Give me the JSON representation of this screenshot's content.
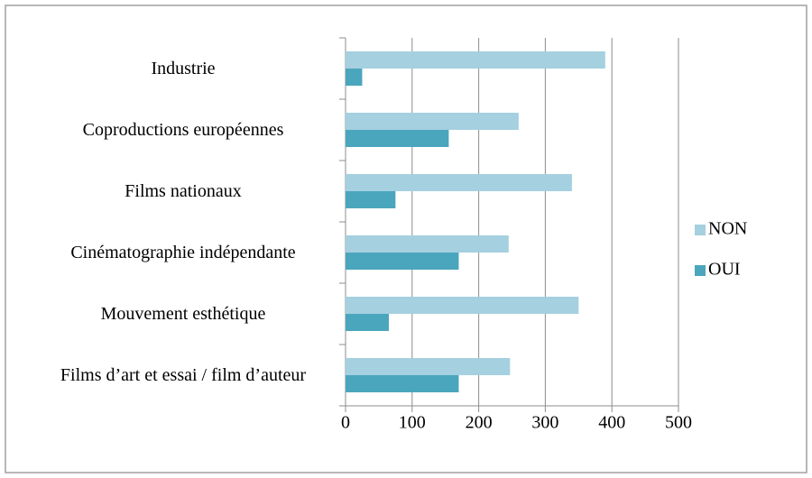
{
  "chart_data": {
    "type": "hbar",
    "categories": [
      "Industrie",
      "Coproductions européennes",
      "Films nationaux",
      "Cinématographie indépendante",
      "Mouvement esthétique",
      "Films d’art et essai / film d’auteur"
    ],
    "series": [
      {
        "name": "NON",
        "color": "#a5d0e0",
        "values": [
          390,
          260,
          340,
          245,
          350,
          247
        ]
      },
      {
        "name": "OUI",
        "color": "#4aa6bd",
        "values": [
          25,
          155,
          75,
          170,
          65,
          170
        ]
      }
    ],
    "xlim": [
      0,
      500
    ],
    "xticks": [
      0,
      100,
      200,
      300,
      400,
      500
    ],
    "grid": true,
    "legend": "right"
  }
}
